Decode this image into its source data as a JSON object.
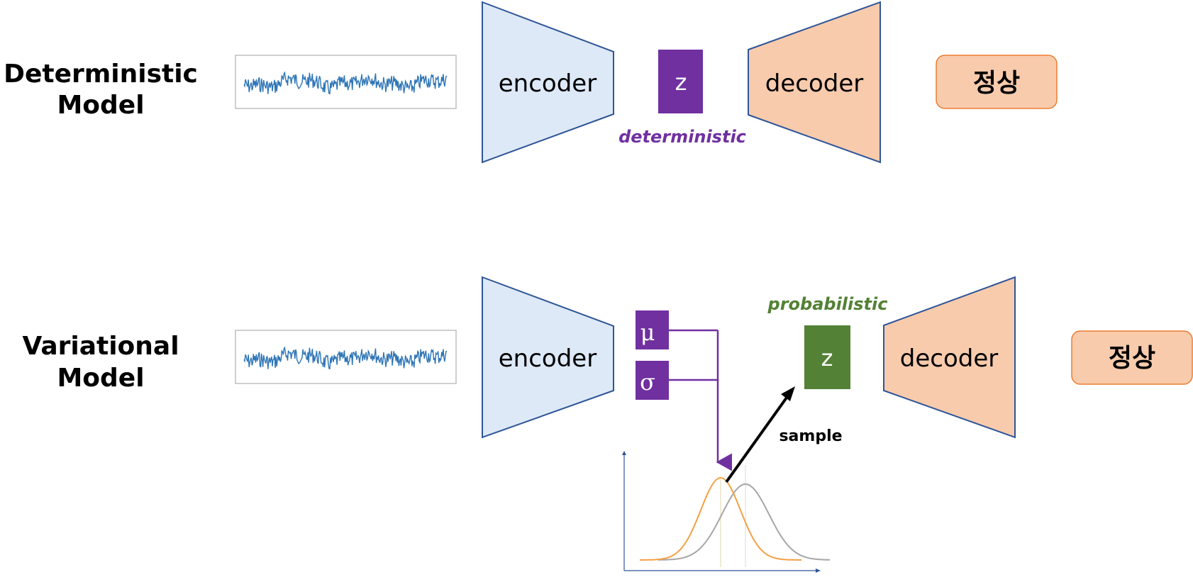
{
  "deterministic_row": {
    "label_line1": "Deterministic",
    "label_line2": "Model",
    "encoder_label": "encoder",
    "latent_label": "z",
    "latent_caption": "deterministic",
    "decoder_label": "decoder",
    "output_label": "정상"
  },
  "variational_row": {
    "label_line1": "Variational",
    "label_line2": "Model",
    "encoder_label": "encoder",
    "mu_label": "μ",
    "sigma_label": "σ",
    "latent_label": "z",
    "latent_caption": "probabilistic",
    "sample_label": "sample",
    "decoder_label": "decoder",
    "output_label": "정상"
  },
  "colors": {
    "encoder_fill": "#dde9f7",
    "encoder_stroke": "#2f5597",
    "decoder_fill": "#f8cbad",
    "decoder_stroke": "#2f5597",
    "latent_purple": "#7030a0",
    "latent_green": "#538135",
    "output_fill": "#f8cbad",
    "output_stroke": "#ed7d31",
    "signal_line": "#2e75b6",
    "orange_curve": "#f4a044",
    "gray_curve": "#a6a6a6",
    "axis": "#2f5597"
  }
}
